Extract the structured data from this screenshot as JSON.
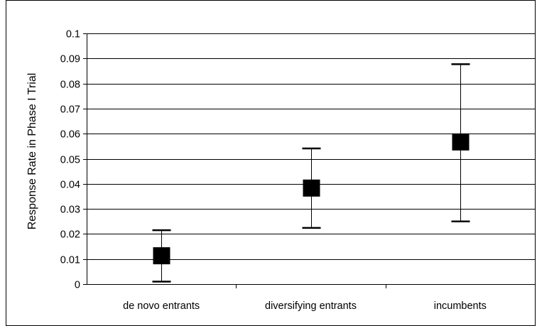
{
  "chart_data": {
    "type": "scatter",
    "title": "",
    "xlabel": "",
    "ylabel": "Response Rate in Phase I Trial",
    "categories": [
      "de novo entrants",
      "diversifying entrants",
      "incumbents"
    ],
    "series": [
      {
        "values": [
          0.0113,
          0.0383,
          0.0567
        ],
        "lower": [
          0.001,
          0.0224,
          0.025
        ],
        "upper": [
          0.0215,
          0.0541,
          0.0877
        ]
      }
    ],
    "ylim": [
      0,
      0.1
    ],
    "yticks": [
      0,
      0.01,
      0.02,
      0.03,
      0.04,
      0.05,
      0.06,
      0.07,
      0.08,
      0.09,
      0.1
    ],
    "ytick_labels": [
      "0",
      "0.01",
      "0.02",
      "0.03",
      "0.04",
      "0.05",
      "0.06",
      "0.07",
      "0.08",
      "0.09",
      "0.1"
    ],
    "grid": true,
    "legend": "none",
    "marker_color": "#000000",
    "grid_color": "#000000"
  }
}
